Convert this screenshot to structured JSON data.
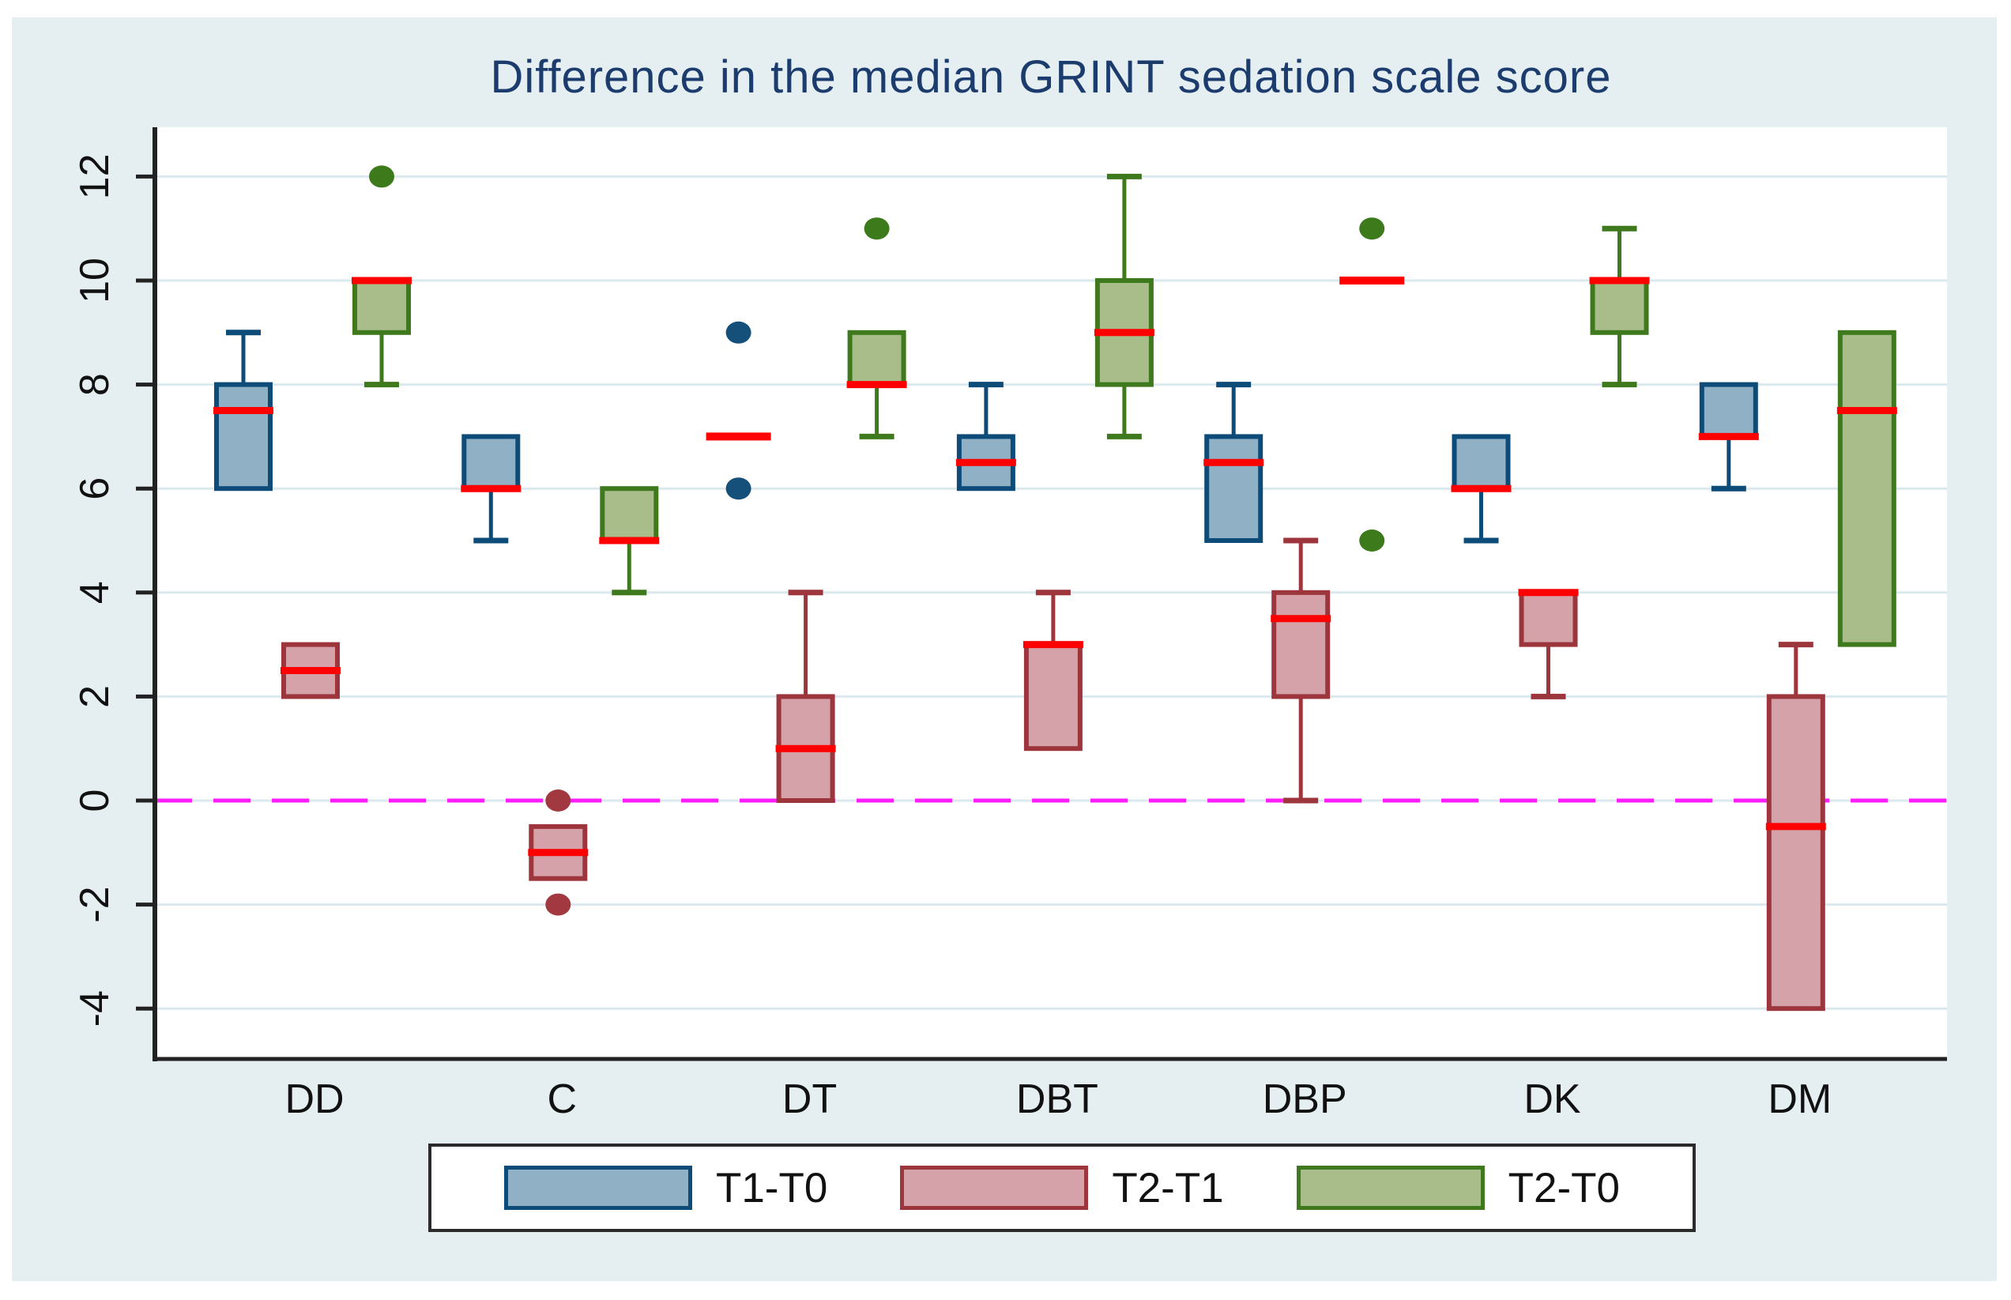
{
  "colors": {
    "page_bg": "#ffffff",
    "panel_bg": "#e5eff2",
    "plot_bg": "#ffffff",
    "grid": "#dbe9ee",
    "axis": "#222222",
    "tick_label": "#111111",
    "title": "#1c3c6e",
    "median": "#ff0000",
    "zero_line": "#ff1dfb"
  },
  "chart_data": {
    "type": "boxplot",
    "title": "Difference in the median GRINT sedation scale score",
    "xlabel": "",
    "ylabel": "",
    "categories": [
      "DD",
      "C",
      "DT",
      "DBT",
      "DBP",
      "DK",
      "DM"
    ],
    "ylim": [
      -5,
      13
    ],
    "yticks": [
      -4,
      -2,
      0,
      2,
      4,
      6,
      8,
      10,
      12
    ],
    "grid": true,
    "zero_reference_line": 0,
    "legend_position": "bottom",
    "median_color": "#ff0000",
    "series": [
      {
        "name": "T1-T0",
        "fill": "#8fb0c5",
        "stroke": "#0d4c78",
        "dot": "#15507b",
        "boxes": [
          {
            "q1": 6,
            "median": 7.5,
            "q3": 8,
            "hi": 9
          },
          {
            "q1": 6,
            "median": 6,
            "q3": 7,
            "lo": 5
          },
          {
            "median": 7,
            "outliers": [
              9,
              6
            ]
          },
          {
            "q1": 6,
            "median": 6.5,
            "q3": 7,
            "hi": 8
          },
          {
            "q1": 5,
            "median": 6.5,
            "q3": 7,
            "hi": 8
          },
          {
            "q1": 6,
            "median": 6,
            "q3": 7,
            "lo": 5
          },
          {
            "q1": 7,
            "median": 7,
            "q3": 8,
            "lo": 6
          }
        ]
      },
      {
        "name": "T2-T1",
        "fill": "#d5a2a9",
        "stroke": "#9c353c",
        "dot": "#a23940",
        "boxes": [
          {
            "q1": 2,
            "median": 2.5,
            "q3": 3
          },
          {
            "q1": -1.5,
            "median": -1,
            "q3": -0.5,
            "outliers": [
              0,
              -2
            ]
          },
          {
            "q1": 0,
            "median": 1,
            "q3": 2,
            "hi": 4
          },
          {
            "q1": 1,
            "median": 3,
            "q3": 3,
            "hi": 4
          },
          {
            "q1": 2,
            "median": 3.5,
            "q3": 4,
            "hi": 5,
            "lo": 0
          },
          {
            "q1": 3,
            "median": 4,
            "q3": 4,
            "lo": 2
          },
          {
            "q1": -4,
            "median": -0.5,
            "q3": 2,
            "hi": 3
          }
        ]
      },
      {
        "name": "T2-T0",
        "fill": "#a9bd8b",
        "stroke": "#3e7a1d",
        "dot": "#3c7a1c",
        "boxes": [
          {
            "q1": 9,
            "median": 10,
            "q3": 10,
            "lo": 8,
            "outliers": [
              12
            ]
          },
          {
            "q1": 5,
            "median": 5,
            "q3": 6,
            "lo": 4
          },
          {
            "q1": 8,
            "median": 8,
            "q3": 9,
            "lo": 7,
            "outliers": [
              11
            ]
          },
          {
            "q1": 8,
            "median": 9,
            "q3": 10,
            "lo": 7,
            "hi": 12
          },
          {
            "median": 10,
            "outliers": [
              11,
              5
            ]
          },
          {
            "q1": 9,
            "median": 10,
            "q3": 10,
            "lo": 8,
            "hi": 11
          },
          {
            "q1": 3,
            "median": 7.5,
            "q3": 9
          }
        ]
      }
    ]
  }
}
